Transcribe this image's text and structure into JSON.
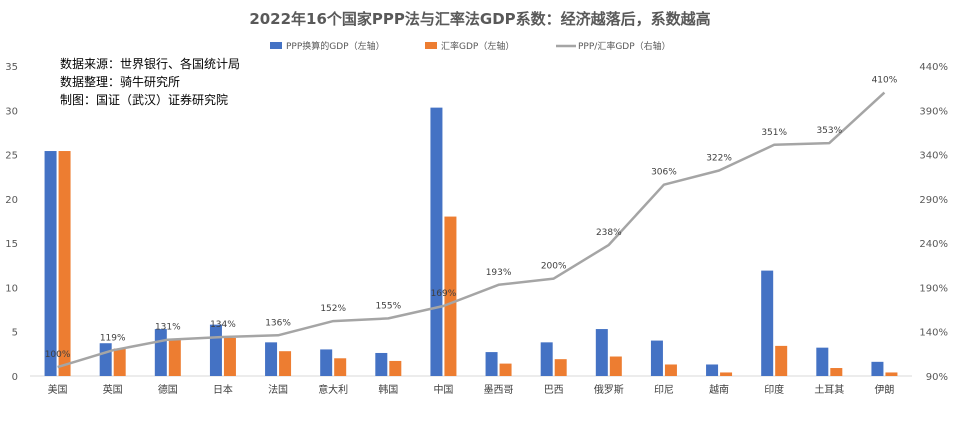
{
  "chart_data": {
    "type": "bar+line",
    "title": "2022年16个国家PPP法与汇率法GDP系数：经济越落后，系数越高",
    "categories": [
      "美国",
      "英国",
      "德国",
      "日本",
      "法国",
      "意大利",
      "韩国",
      "中国",
      "墨西哥",
      "巴西",
      "俄罗斯",
      "印尼",
      "越南",
      "印度",
      "土耳其",
      "伊朗"
    ],
    "series": [
      {
        "name": "PPP换算的GDP（左轴）",
        "type": "bar",
        "axis": "left",
        "color": "#4472C4",
        "values": [
          25.4,
          3.7,
          5.3,
          5.8,
          3.8,
          3.0,
          2.6,
          30.3,
          2.7,
          3.8,
          5.3,
          4.0,
          1.3,
          11.9,
          3.2,
          1.6
        ]
      },
      {
        "name": "汇率GDP（左轴）",
        "type": "bar",
        "axis": "left",
        "color": "#ED7D31",
        "values": [
          25.4,
          3.1,
          4.1,
          4.3,
          2.8,
          2.0,
          1.7,
          18.0,
          1.4,
          1.9,
          2.2,
          1.3,
          0.4,
          3.4,
          0.9,
          0.4
        ]
      },
      {
        "name": "PPP/汇率GDP（右轴）",
        "type": "line",
        "axis": "right",
        "color": "#A5A5A5",
        "values": [
          100,
          119,
          131,
          134,
          136,
          152,
          155,
          169,
          193,
          200,
          238,
          306,
          322,
          351,
          353,
          410
        ],
        "labels": [
          "100%",
          "119%",
          "131%",
          "134%",
          "136%",
          "152%",
          "155%",
          "169%",
          "193%",
          "200%",
          "238%",
          "306%",
          "322%",
          "351%",
          "353%",
          "410%"
        ]
      }
    ],
    "left_axis": {
      "min": 0,
      "max": 35,
      "ticks": [
        0,
        5,
        10,
        15,
        20,
        25,
        30,
        35
      ]
    },
    "right_axis": {
      "min": 90,
      "max": 440,
      "ticks": [
        "90%",
        "140%",
        "190%",
        "240%",
        "290%",
        "340%",
        "390%",
        "440%"
      ]
    },
    "legend_position": "top",
    "grid": false
  },
  "source_note": {
    "line1": "数据来源：世界银行、各国统计局",
    "line2": "数据整理：骑牛研究所",
    "line3": "制图：国证（武汉）证券研究院"
  }
}
